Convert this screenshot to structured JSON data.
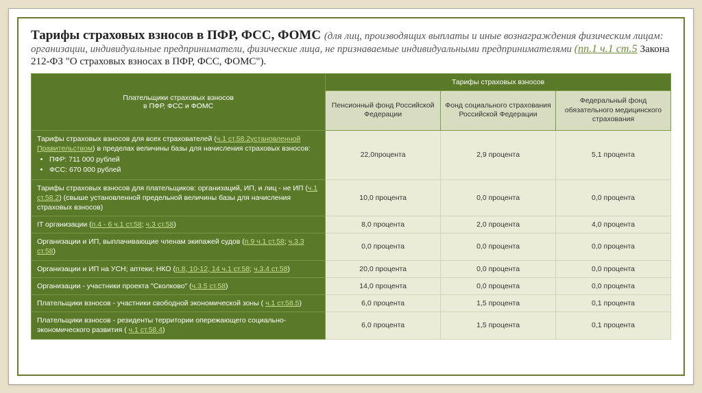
{
  "title": {
    "main": "Тарифы страховых взносов в ПФР, ФСС, ФОМС ",
    "sub_italic": "(для лиц, производящих выплаты и иные вознаграждения физическим лицам: организации, индивидуальные предприниматели, физические лица, не признаваемые индивидуальными предпринимателями ",
    "link": "(пп.1 ч.1 ст.5",
    "tail": " Закона 212-ФЗ \"О страховых взносах в ПФР, ФСС, ФОМС\")."
  },
  "headers": {
    "col_left": "Плательщики страховых взносов\nв ПФР, ФСС и ФОМС",
    "col_right": "Тарифы страховых взносов",
    "sub1": "Пенсионный фонд Российской Федерации",
    "sub2": "Фонд социального страхования Российской Федерации",
    "sub3": "Федеральный фонд обязательного медицинского страхования"
  },
  "rows": [
    {
      "label_pre": "Тарифы страховых взносов для всех страхователей (",
      "label_link": "ч.1 ст.58.2",
      "label_post": ") в пределах ",
      "label_link2": "установленной Правительством",
      "label_tail": " величины базы для начисления страховых взносов:",
      "bullets": [
        "ПФР: 711 000 рублей",
        "ФСС: 670 000 рублей"
      ],
      "v1": "22,0процента",
      "v2": "2,9 процента",
      "v3": "5,1 процента"
    },
    {
      "label_pre": "Тарифы страховых взносов для плательщиков: организаций, ИП, и лиц - не ИП (",
      "label_link": "ч.1 ст.58.2",
      "label_post": ") (свыше установленной предельной величины базы для начисления страховых взносов)",
      "v1": "10,0 процента",
      "v2": "0,0 процента",
      "v3": "0,0 процента"
    },
    {
      "label_pre": "IT организации (",
      "label_link": "п.4 - 6 ч.1 ст.58",
      "label_mid": "; ",
      "label_link2": "ч.3 ст.58",
      "label_post": ")",
      "v1": "8,0 процента",
      "v2": "2,0 процента",
      "v3": "4,0 процента"
    },
    {
      "label_pre": "Организации и ИП, выплачивающие членам экипажей судов (",
      "label_link": "п.9 ч.1 ст.58",
      "label_mid": "; ",
      "label_link2": "ч.3.3 ст.58",
      "label_post": ")",
      "v1": "0,0 процента",
      "v2": "0,0 процента",
      "v3": "0,0 процента"
    },
    {
      "label_pre": "Организации и ИП на УСН; аптеки; НКО (",
      "label_link": "п.8, 10-12, 14 ч.1 ст.58",
      "label_mid": "; ",
      "label_link2": "ч.3.4 ст.58",
      "label_post": ")",
      "v1": "20,0 процента",
      "v2": "0,0 процента",
      "v3": "0,0 процента"
    },
    {
      "label_pre": "Организации - участники проекта \"Сколково\" (",
      "label_link": "ч.3.5 ст.58",
      "label_post": ")",
      "v1": "14,0 процента",
      "v2": "0,0 процента",
      "v3": "0,0 процента"
    },
    {
      "label_pre": "Плательщики взносов - участники свободной экономической зоны ( ",
      "label_link": "ч.1 ст.58.5",
      "label_post": ")",
      "v1": "6,0 процента",
      "v2": "1,5 процента",
      "v3": "0,1 процента"
    },
    {
      "label_pre": "Плательщики взносов - резиденты территории опережающего социально-экономического развития ( ",
      "label_link": "ч.1 ст.58.4",
      "label_post": ")",
      "v1": "6,0 процента",
      "v2": "1,5 процента",
      "v3": "0,1 процента"
    }
  ],
  "styling": {
    "header_bg": "#5a7a2a",
    "header_fg": "#ffffff",
    "subheader_bg": "#d8dcc0",
    "cell_bg": "#eaecd8",
    "frame_border": "#6b7a2e",
    "page_bg": "#e8e0c8",
    "col_widths_pct": [
      46,
      18,
      18,
      18
    ]
  }
}
